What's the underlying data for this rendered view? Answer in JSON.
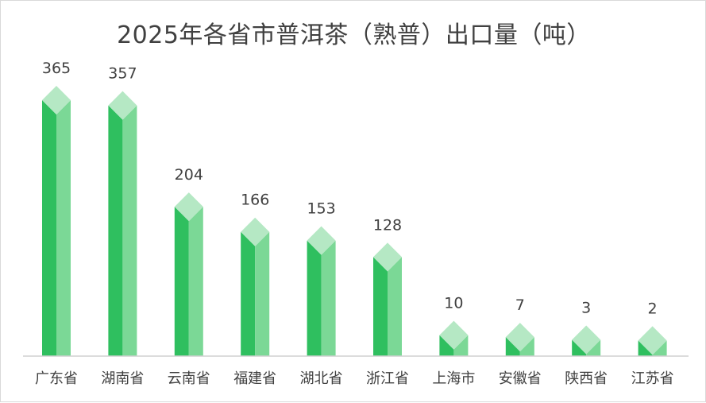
{
  "chart_data": {
    "type": "bar",
    "title": "2025年各省市普洱茶（熟普）出口量（吨）",
    "categories": [
      "广东省",
      "湖南省",
      "云南省",
      "福建省",
      "湖北省",
      "浙江省",
      "上海市",
      "安徽省",
      "陕西省",
      "江苏省"
    ],
    "values": [
      365,
      357,
      204,
      166,
      153,
      128,
      10,
      7,
      3,
      2
    ],
    "data_labels": [
      "365",
      "357",
      "204",
      "166",
      "153",
      "128",
      "10",
      "7",
      "3",
      "2"
    ],
    "xlabel": "",
    "ylabel": "",
    "ylim": [
      0,
      365
    ],
    "grid": false,
    "legend": "none",
    "colors": {
      "front": "#2fbf5f",
      "side": "#7bd896",
      "top": "#b5e8c4",
      "axis": "#d0d0d0",
      "text": "#404040"
    }
  }
}
